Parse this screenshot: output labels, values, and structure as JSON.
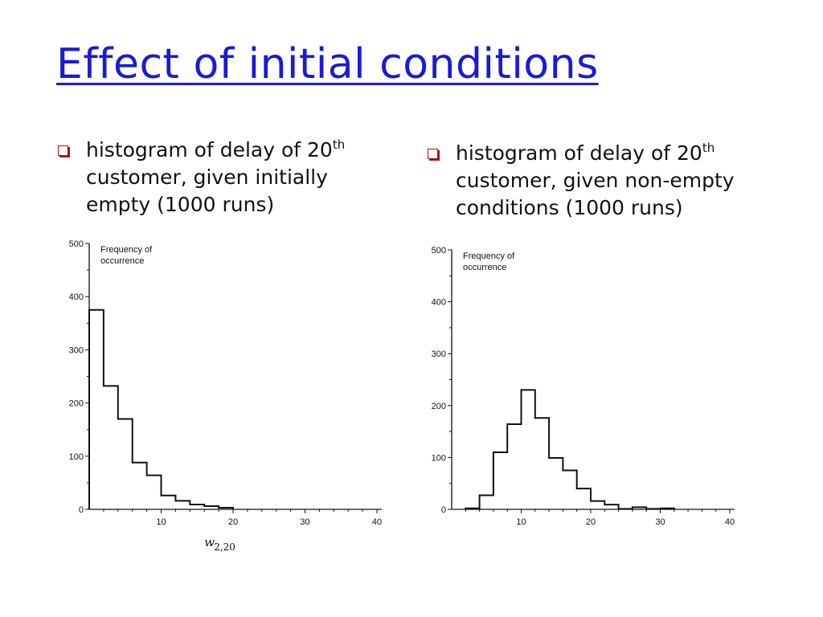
{
  "slide": {
    "title": "Effect of initial conditions"
  },
  "bullets": [
    {
      "text": "histogram of delay of 20",
      "sup": "th",
      "line2": "customer, given initially",
      "line3": "empty (1000 runs)"
    },
    {
      "text": "histogram of delay of 20",
      "sup": "th",
      "line2": "customer, given non-empty",
      "line3": "conditions (1000 runs)"
    }
  ],
  "chart_data": [
    {
      "type": "bar",
      "ylabel_line1": "Frequency of",
      "ylabel_line2": "occurrence",
      "xlabel_main": "w",
      "xlabel_sub": "2,20",
      "xlim": [
        0,
        40
      ],
      "ylim": [
        0,
        500
      ],
      "xticks": [
        "10",
        "20",
        "30",
        "40"
      ],
      "yticks": [
        "0",
        "100",
        "200",
        "300",
        "400",
        "500"
      ],
      "bin_width": 2,
      "bins_start": [
        0,
        2,
        4,
        6,
        8,
        10,
        12,
        14,
        16,
        18
      ],
      "values": [
        375,
        232,
        170,
        88,
        64,
        26,
        16,
        9,
        6,
        3
      ],
      "grid": false
    },
    {
      "type": "bar",
      "ylabel_line1": "Frequency of",
      "ylabel_line2": "occurrence",
      "xlabel_main": "",
      "xlabel_sub": "",
      "xlim": [
        0,
        40
      ],
      "ylim": [
        0,
        500
      ],
      "xticks": [
        "10",
        "20",
        "30",
        "40"
      ],
      "yticks": [
        "0",
        "100",
        "200",
        "300",
        "400",
        "500"
      ],
      "bin_width": 2,
      "bins_start": [
        2,
        4,
        6,
        8,
        10,
        12,
        14,
        16,
        18,
        20,
        22,
        24,
        26,
        28,
        30
      ],
      "values": [
        2,
        27,
        110,
        164,
        230,
        176,
        99,
        75,
        40,
        16,
        9,
        1,
        4,
        1,
        2
      ],
      "grid": false
    }
  ]
}
